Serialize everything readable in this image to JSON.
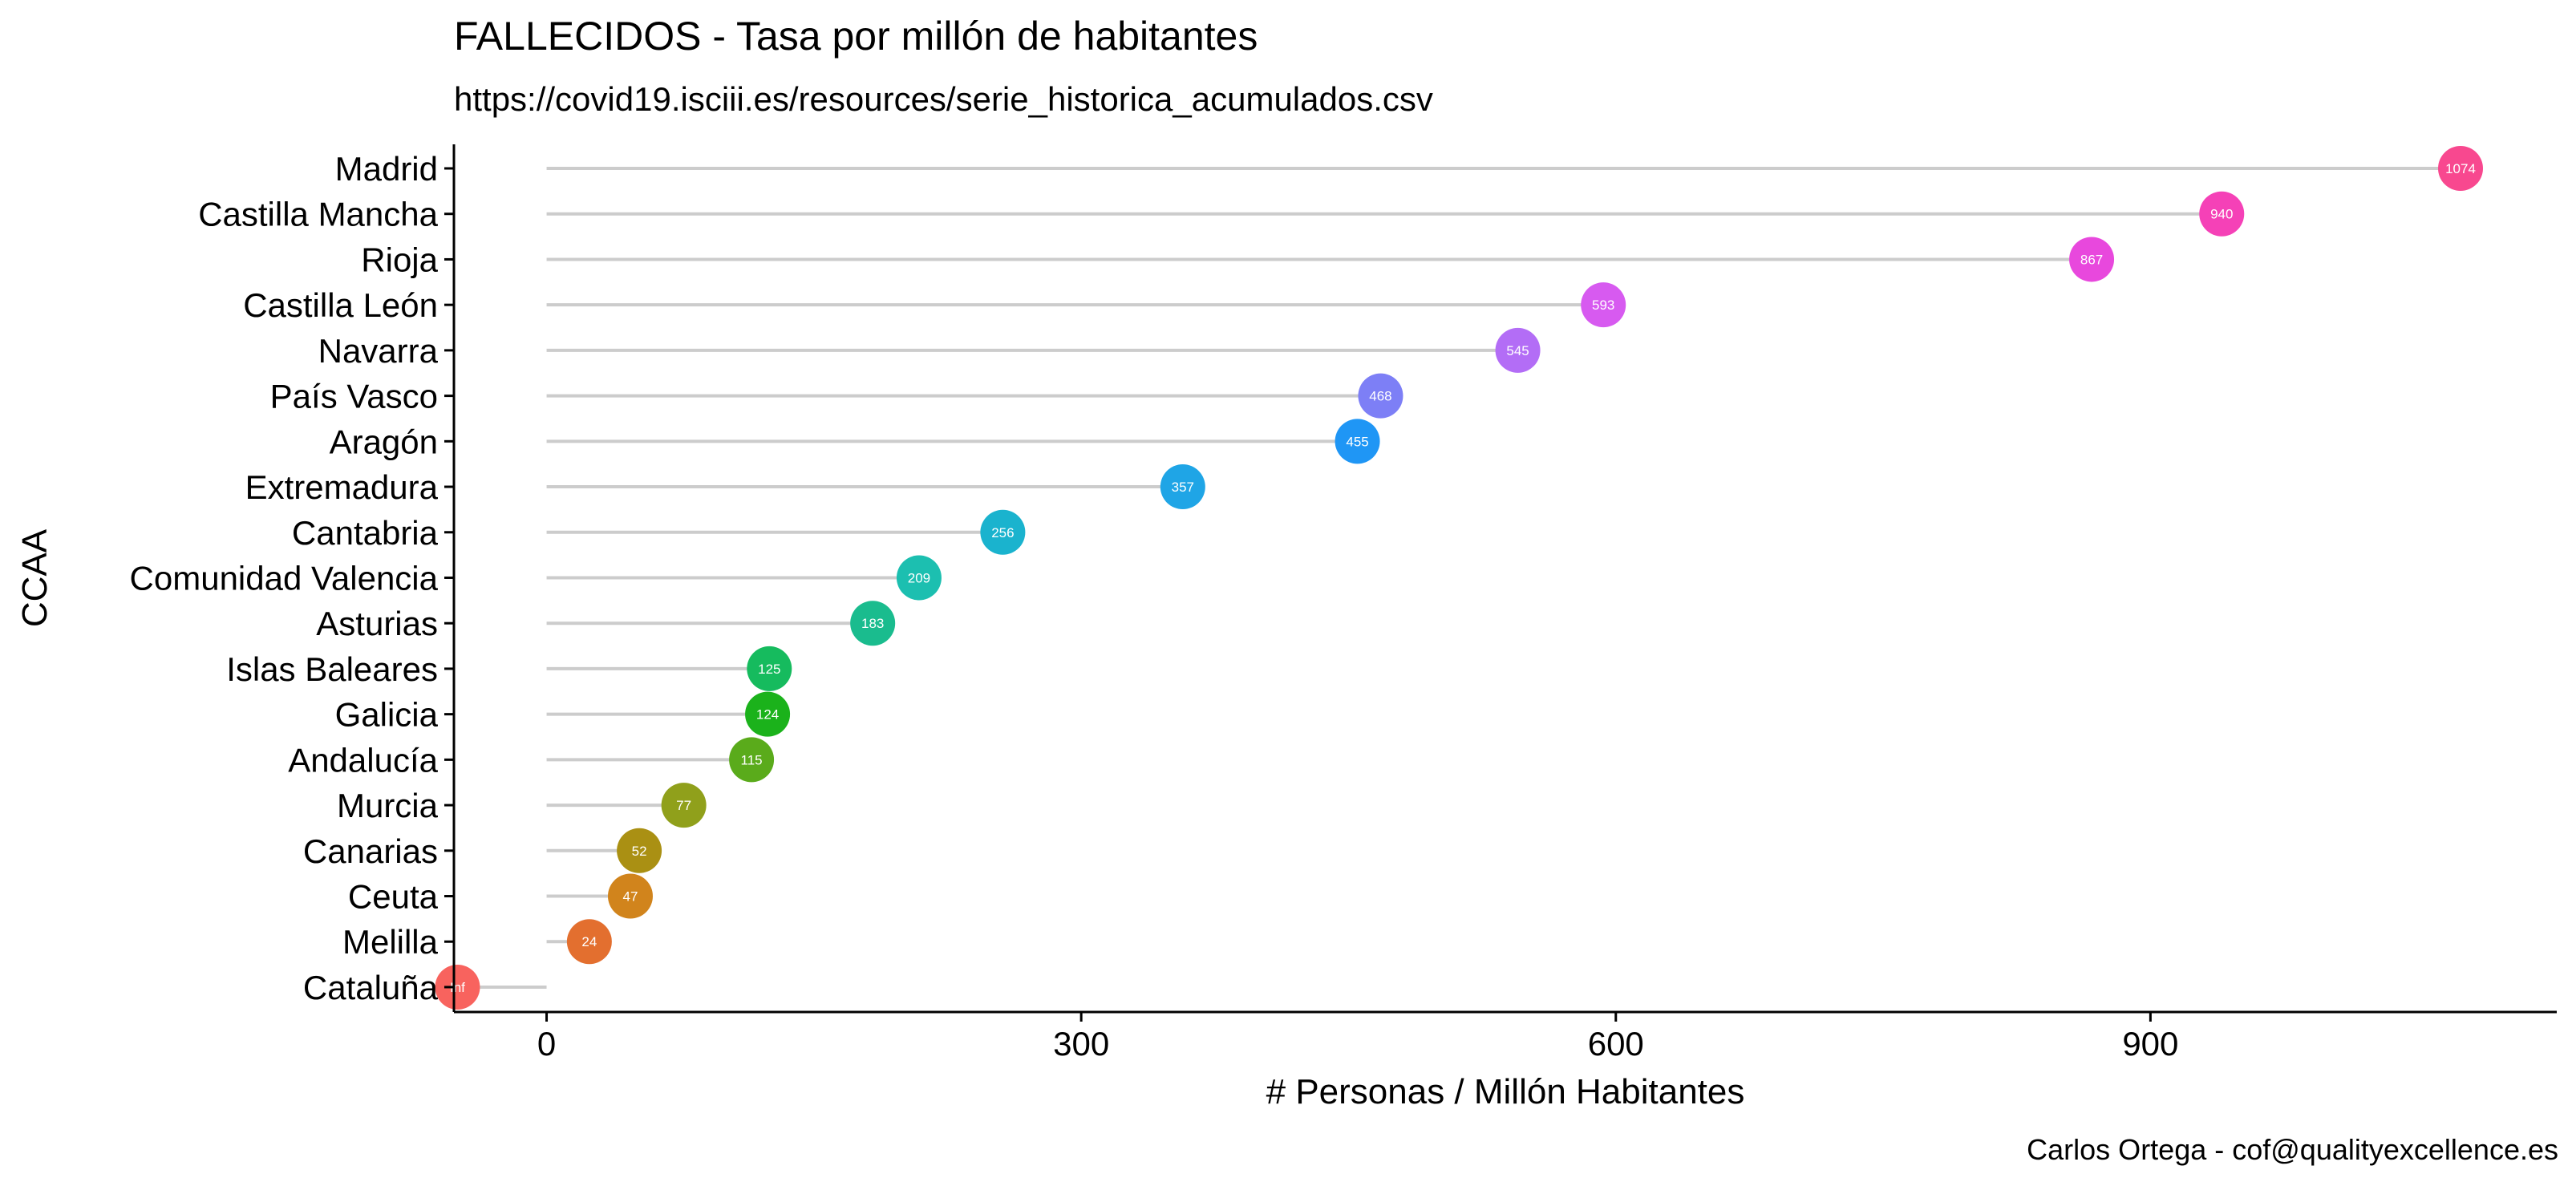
{
  "chart_data": {
    "type": "lollipop",
    "title": "FALLECIDOS - Tasa por millón de habitantes",
    "subtitle": "https://covid19.isciii.es/resources/serie_historica_acumulados.csv",
    "xlabel": "# Personas / Millón Habitantes",
    "ylabel": "CCAA",
    "caption": "Carlos Ortega - cof@qualityexcellence.es",
    "xlim": [
      -52,
      1128
    ],
    "xticks": [
      0,
      300,
      600,
      900
    ],
    "xtick_labels": [
      "0",
      "300",
      "600",
      "900"
    ],
    "grid": false,
    "legend": "none",
    "stem_color": "#cccccc",
    "categories": [
      "Madrid",
      "Castilla Mancha",
      "Rioja",
      "Castilla León",
      "Navarra",
      "País Vasco",
      "Aragón",
      "Extremadura",
      "Cantabria",
      "Comunidad Valencia",
      "Asturias",
      "Islas Baleares",
      "Galicia",
      "Andalucía",
      "Murcia",
      "Canarias",
      "Ceuta",
      "Melilla",
      "Cataluña"
    ],
    "values": [
      1074,
      940,
      867,
      593,
      545,
      468,
      455,
      357,
      256,
      209,
      183,
      125,
      124,
      115,
      77,
      52,
      47,
      24,
      -50
    ],
    "value_labels": [
      "1074",
      "940",
      "867",
      "593",
      "545",
      "468",
      "455",
      "357",
      "256",
      "209",
      "183",
      "125",
      "124",
      "115",
      "77",
      "52",
      "47",
      "24",
      "Inf"
    ],
    "colors": [
      "#F8488F",
      "#F541B7",
      "#E848DD",
      "#D75AF0",
      "#B36DF6",
      "#7D7FF6",
      "#1F96F5",
      "#1FA5E6",
      "#1AB3CE",
      "#1CBFB0",
      "#1ABC8E",
      "#16BB5E",
      "#1BB21B",
      "#5AAB1B",
      "#90A01B",
      "#AA9013",
      "#D1841C",
      "#E36F2F",
      "#F8635E"
    ]
  }
}
